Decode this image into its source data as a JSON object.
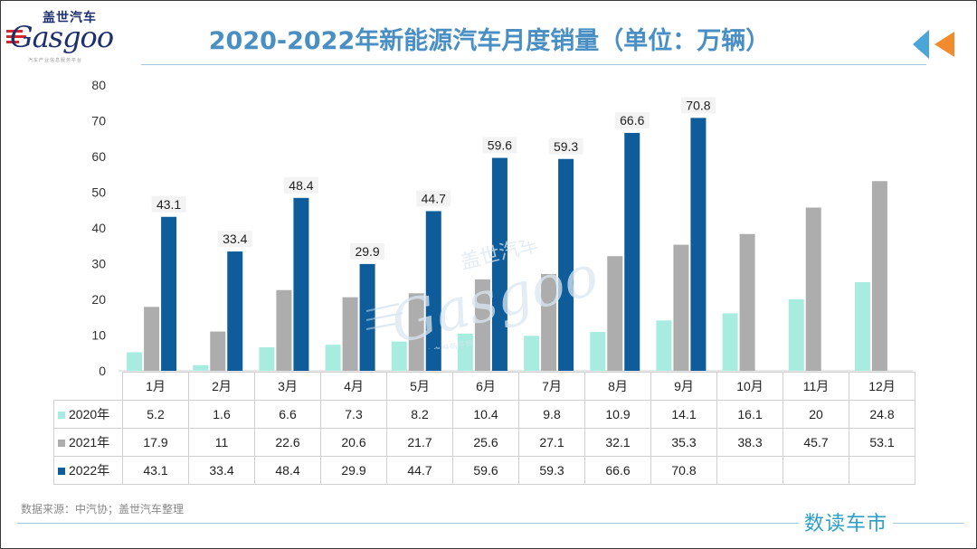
{
  "header": {
    "title": "2020-2022年新能源汽车月度销量（单位：万辆）",
    "logo_cn": "盖世汽车",
    "logo_en": "Gasgoo",
    "logo_sub": "汽车产业信息服务平台"
  },
  "colors": {
    "2020": "#a8ece0",
    "2021": "#adadad",
    "2022": "#0e5d9a",
    "title": "#4a8fc4",
    "accent_orange": "#f28a2e"
  },
  "chart_data": {
    "type": "bar",
    "title": "2020-2022年新能源汽车月度销量（单位：万辆）",
    "categories": [
      "1月",
      "2月",
      "3月",
      "4月",
      "5月",
      "6月",
      "7月",
      "8月",
      "9月",
      "10月",
      "11月",
      "12月"
    ],
    "series": [
      {
        "name": "2020年",
        "values": [
          5.2,
          1.6,
          6.6,
          7.3,
          8.2,
          10.4,
          9.8,
          10.9,
          14.1,
          16.1,
          20,
          24.8
        ]
      },
      {
        "name": "2021年",
        "values": [
          17.9,
          11,
          22.6,
          20.6,
          21.7,
          25.6,
          27.1,
          32.1,
          35.3,
          38.3,
          45.7,
          53.1
        ]
      },
      {
        "name": "2022年",
        "values": [
          43.1,
          33.4,
          48.4,
          29.9,
          44.7,
          59.6,
          59.3,
          66.6,
          70.8,
          null,
          null,
          null
        ]
      }
    ],
    "ylim": [
      0,
      80
    ],
    "yticks": [
      "0",
      "10",
      "20",
      "30",
      "40",
      "50",
      "60",
      "70",
      "80"
    ],
    "data_labels": {
      "series": "2022年",
      "values": [
        "43.1",
        "33.4",
        "48.4",
        "29.9",
        "44.7",
        "59.6",
        "59.3",
        "66.6",
        "70.8"
      ]
    },
    "grid": false,
    "legend": "data-table"
  },
  "table": {
    "rows": [
      {
        "label": "2020年",
        "values": [
          "5.2",
          "1.6",
          "6.6",
          "7.3",
          "8.2",
          "10.4",
          "9.8",
          "10.9",
          "14.1",
          "16.1",
          "20",
          "24.8"
        ]
      },
      {
        "label": "2021年",
        "values": [
          "17.9",
          "11",
          "22.6",
          "20.6",
          "21.7",
          "25.6",
          "27.1",
          "32.1",
          "35.3",
          "38.3",
          "45.7",
          "53.1"
        ]
      },
      {
        "label": "2022年",
        "values": [
          "43.1",
          "33.4",
          "48.4",
          "29.9",
          "44.7",
          "59.6",
          "59.3",
          "66.6",
          "70.8",
          "",
          "",
          ""
        ]
      }
    ]
  },
  "footer": {
    "source": "数据来源：中汽协；盖世汽车整理",
    "brand": "数读车市"
  },
  "watermark": {
    "text": "Gasgoo",
    "cn": "盖世汽车",
    "sub": "产业信息服务平台"
  }
}
